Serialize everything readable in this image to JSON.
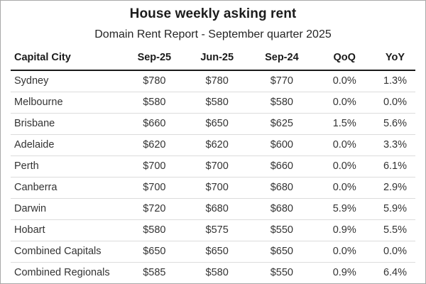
{
  "title": "House weekly asking rent",
  "subtitle": "Domain Rent Report - September quarter 2025",
  "colors": {
    "background": "#ffffff",
    "outer_border": "#a9a9a9",
    "header_rule": "#1a1a1a",
    "row_divider": "#dcdcdc",
    "title_text": "#1c1c1c",
    "body_text": "#333333"
  },
  "chart_data": {
    "type": "table",
    "title": "House weekly asking rent",
    "subtitle": "Domain Rent Report - September quarter 2025",
    "columns": [
      "Capital City",
      "Sep-25",
      "Jun-25",
      "Sep-24",
      "QoQ",
      "YoY"
    ],
    "rows": [
      [
        "Sydney",
        "$780",
        "$780",
        "$770",
        "0.0%",
        "1.3%"
      ],
      [
        "Melbourne",
        "$580",
        "$580",
        "$580",
        "0.0%",
        "0.0%"
      ],
      [
        "Brisbane",
        "$660",
        "$650",
        "$625",
        "1.5%",
        "5.6%"
      ],
      [
        "Adelaide",
        "$620",
        "$620",
        "$600",
        "0.0%",
        "3.3%"
      ],
      [
        "Perth",
        "$700",
        "$700",
        "$660",
        "0.0%",
        "6.1%"
      ],
      [
        "Canberra",
        "$700",
        "$700",
        "$680",
        "0.0%",
        "2.9%"
      ],
      [
        "Darwin",
        "$720",
        "$680",
        "$680",
        "5.9%",
        "5.9%"
      ],
      [
        "Hobart",
        "$580",
        "$575",
        "$550",
        "0.9%",
        "5.5%"
      ],
      [
        "Combined Capitals",
        "$650",
        "$650",
        "$650",
        "0.0%",
        "0.0%"
      ],
      [
        "Combined Regionals",
        "$585",
        "$580",
        "$550",
        "0.9%",
        "6.4%"
      ]
    ]
  }
}
